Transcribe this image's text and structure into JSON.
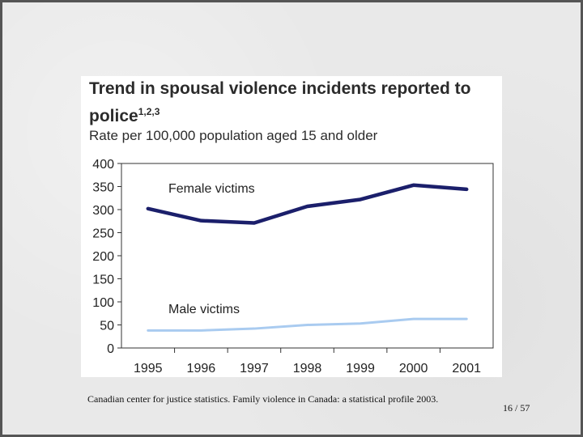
{
  "chart_data": {
    "type": "line",
    "title": "Trend in spousal violence incidents reported to police",
    "title_superscript": "1,2,3",
    "subtitle": "Rate per 100,000 population aged 15 and older",
    "categories": [
      "1995",
      "1996",
      "1997",
      "1998",
      "1999",
      "2000",
      "2001"
    ],
    "series": [
      {
        "name": "Female victims",
        "color": "#1b1f6b",
        "values": [
          302,
          276,
          271,
          307,
          322,
          353,
          344
        ]
      },
      {
        "name": "Male victims",
        "color": "#a9cbf0",
        "values": [
          38,
          38,
          42,
          50,
          53,
          63,
          63
        ]
      }
    ],
    "ylim": [
      0,
      400
    ],
    "yticks": [
      "0",
      "50",
      "100",
      "150",
      "200",
      "250",
      "300",
      "350",
      "400"
    ],
    "grid": false
  },
  "caption": "Canadian center for justice statistics. Family violence in Canada: a statistical profile 2003.",
  "page_number": "16  / 57"
}
